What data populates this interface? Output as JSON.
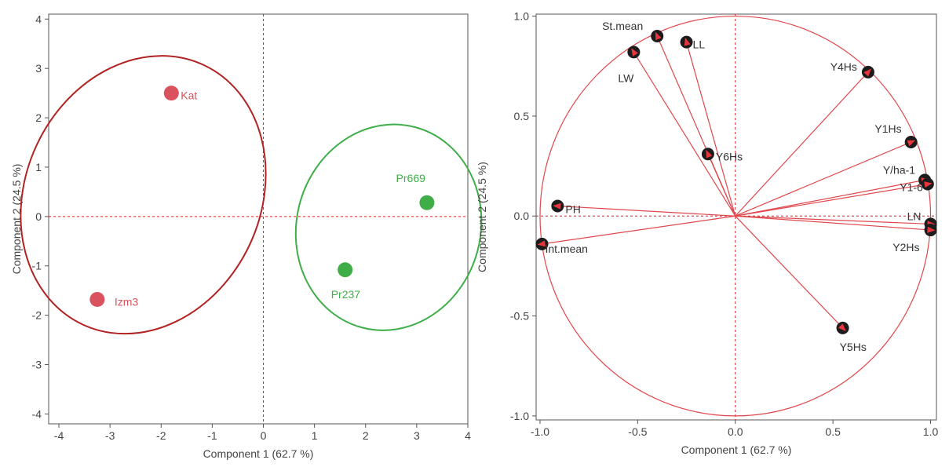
{
  "chart_data": [
    {
      "type": "scatter",
      "title": "",
      "xlabel": "Component 1  (62.7 %)",
      "ylabel": "Component 2  (24.5 %)",
      "xlim": [
        -4.2,
        4
      ],
      "ylim": [
        -4.2,
        4.1
      ],
      "xticks": [
        -4,
        -3,
        -2,
        -1,
        0,
        1,
        2,
        3,
        4
      ],
      "yticks": [
        -4,
        -3,
        -2,
        -1,
        0,
        1,
        2,
        3,
        4
      ],
      "reference_lines": {
        "x": 0,
        "y": 0,
        "style": "dashed",
        "color": "#e02020"
      },
      "points": [
        {
          "label": "Kat",
          "x": -1.8,
          "y": 2.5,
          "color": "#d9525e",
          "group": "red"
        },
        {
          "label": "Izm3",
          "x": -3.25,
          "y": -1.68,
          "color": "#d9525e",
          "group": "red"
        },
        {
          "label": "Pr669",
          "x": 3.2,
          "y": 0.28,
          "color": "#3fae49",
          "group": "green"
        },
        {
          "label": "Pr237",
          "x": 1.6,
          "y": -1.08,
          "color": "#3fae49",
          "group": "green"
        }
      ],
      "groups": [
        {
          "name": "red",
          "stroke": "#b22222",
          "cx": -2.35,
          "cy": 0.44,
          "rx": 2.3,
          "ry": 2.9,
          "rotation_deg": 25
        },
        {
          "name": "green",
          "stroke": "#3fae49",
          "cx": 2.45,
          "cy": -0.22,
          "rx": 1.8,
          "ry": 2.1,
          "rotation_deg": 15
        }
      ]
    },
    {
      "type": "scatter",
      "subtype": "loading-plot",
      "title": "",
      "xlabel": "Component 1  (62.7 %)",
      "ylabel": "Component 2  (24.5 %)",
      "xlim": [
        -1.02,
        1.03
      ],
      "ylim": [
        -1.02,
        1.01
      ],
      "xticks": [
        -1.0,
        -0.5,
        0.0,
        0.5,
        1.0
      ],
      "yticks": [
        -1.0,
        -0.5,
        0.0,
        0.5,
        1.0
      ],
      "xtick_labels": [
        "-1.0",
        "-0.5",
        "0.0",
        "0.5",
        "1.0"
      ],
      "ytick_labels": [
        "-1.0",
        "-0.5",
        "0.0",
        "0.5",
        "1.0"
      ],
      "unit_circle": true,
      "reference_lines": {
        "x": 0,
        "y": 0,
        "style": "dashed",
        "color": "#e02020"
      },
      "vector_color": "#e0474c",
      "loadings": [
        {
          "label": "St.mean",
          "x": -0.4,
          "y": 0.9
        },
        {
          "label": "LL",
          "x": -0.25,
          "y": 0.87
        },
        {
          "label": "LW",
          "x": -0.52,
          "y": 0.82
        },
        {
          "label": "Y4Hs",
          "x": 0.68,
          "y": 0.72
        },
        {
          "label": "Y1Hs",
          "x": 0.9,
          "y": 0.37
        },
        {
          "label": "Y6Hs",
          "x": -0.14,
          "y": 0.31
        },
        {
          "label": "Y/ha-1",
          "x": 0.97,
          "y": 0.18
        },
        {
          "label": "Y1-6",
          "x": 0.985,
          "y": 0.16
        },
        {
          "label": "LN",
          "x": 1.0,
          "y": -0.04
        },
        {
          "label": "Y2Hs",
          "x": 1.0,
          "y": -0.07
        },
        {
          "label": "PH",
          "x": -0.91,
          "y": 0.05
        },
        {
          "label": "Int.mean",
          "x": -0.99,
          "y": -0.14
        },
        {
          "label": "Y5Hs",
          "x": 0.55,
          "y": -0.56
        }
      ]
    }
  ]
}
